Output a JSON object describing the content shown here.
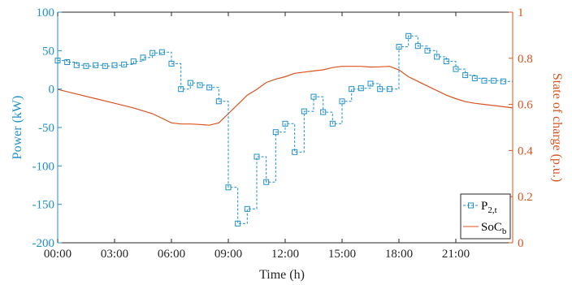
{
  "chart_data": {
    "type": "line",
    "xlabel": "Time (h)",
    "ylabel_left": "Power (kW)",
    "ylabel_right": "State of charge (p.u.)",
    "xlim": [
      0,
      24
    ],
    "ylim_left": [
      -200,
      100
    ],
    "ylim_right": [
      0,
      1
    ],
    "x_ticks": [
      "00:00",
      "03:00",
      "06:00",
      "09:00",
      "12:00",
      "15:00",
      "18:00",
      "21:00"
    ],
    "x_tick_values": [
      0,
      3,
      6,
      9,
      12,
      15,
      18,
      21
    ],
    "y_ticks_left": [
      "100",
      "50",
      "0",
      "-50",
      "-100",
      "-150",
      "-200"
    ],
    "y_tick_values_left": [
      100,
      50,
      0,
      -50,
      -100,
      -150,
      -200
    ],
    "y_ticks_right": [
      "1",
      "0.8",
      "0.6",
      "0.4",
      "0.2",
      "0"
    ],
    "y_tick_values_right": [
      1,
      0.8,
      0.6,
      0.4,
      0.2,
      0
    ],
    "legend": {
      "placement": "bottom-right",
      "entries": [
        {
          "main": "P",
          "sub": "2,t"
        },
        {
          "main": "SoC",
          "sub": "b"
        }
      ]
    },
    "colors": {
      "power": "#1f8fc8",
      "soc": "#d9531e",
      "axis": "#262626"
    },
    "series": [
      {
        "name": "P2,t",
        "style": "dashed-stairs-with-square-markers",
        "x": [
          0,
          0.5,
          1,
          1.5,
          2,
          2.5,
          3,
          3.5,
          4,
          4.5,
          5,
          5.5,
          6,
          6.5,
          7,
          7.5,
          8,
          8.5,
          9,
          9.5,
          10,
          10.5,
          11,
          11.5,
          12,
          12.5,
          13,
          13.5,
          14,
          14.5,
          15,
          15.5,
          16,
          16.5,
          17,
          17.5,
          18,
          18.5,
          19,
          19.5,
          20,
          20.5,
          21,
          21.5,
          22,
          22.5,
          23,
          23.5
        ],
        "values": [
          37,
          35,
          31,
          30,
          31,
          30,
          31,
          32,
          36,
          41,
          47,
          48,
          33,
          0,
          8,
          5,
          2,
          -16,
          -128,
          -175,
          -156,
          -88,
          -121,
          -56,
          -45,
          -82,
          -29,
          -10,
          -30,
          -45,
          -16,
          0,
          1,
          7,
          0,
          0,
          55,
          69,
          56,
          50,
          42,
          36,
          26,
          18,
          14,
          11,
          11,
          10
        ]
      },
      {
        "name": "SoCb",
        "style": "line",
        "x": [
          0,
          1,
          2,
          3,
          4,
          5,
          6,
          6.5,
          7,
          7.5,
          8,
          8.5,
          9,
          9.5,
          10,
          10.5,
          11,
          11.5,
          12,
          12.5,
          13,
          13.5,
          14,
          14.5,
          15,
          15.5,
          16,
          16.5,
          17,
          17.5,
          18,
          18.5,
          19,
          19.5,
          20,
          20.5,
          21,
          21.5,
          22,
          22.5,
          23,
          23.5,
          24
        ],
        "values": [
          0.665,
          0.645,
          0.625,
          0.605,
          0.585,
          0.56,
          0.52,
          0.515,
          0.515,
          0.513,
          0.51,
          0.52,
          0.56,
          0.6,
          0.64,
          0.665,
          0.695,
          0.71,
          0.72,
          0.735,
          0.74,
          0.745,
          0.75,
          0.76,
          0.765,
          0.765,
          0.765,
          0.762,
          0.763,
          0.765,
          0.75,
          0.72,
          0.7,
          0.68,
          0.66,
          0.64,
          0.625,
          0.612,
          0.605,
          0.6,
          0.595,
          0.59,
          0.585
        ]
      }
    ]
  }
}
